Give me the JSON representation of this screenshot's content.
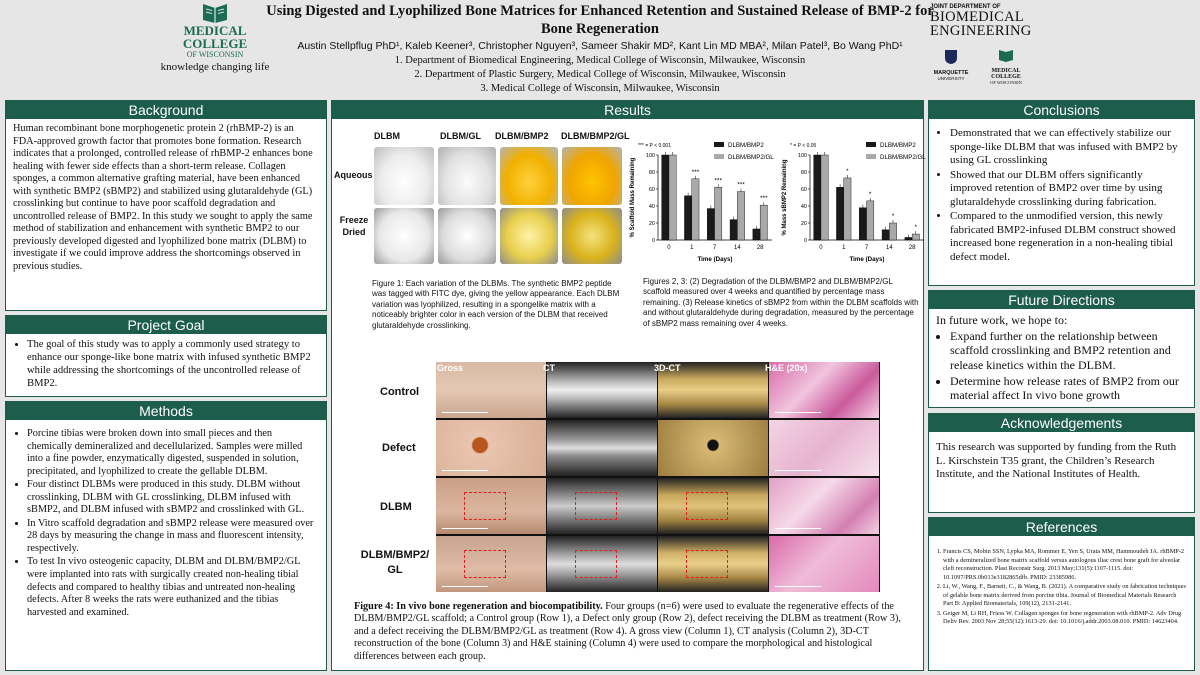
{
  "header": {
    "title": "Using Digested and Lyophilized Bone Matrices for Enhanced Retention and Sustained Release of BMP-2 for Bone Regeneration",
    "authors": "Austin Stellpflug PhD¹, Kaleb Keener³, Christopher Nguyen³, Sameer Shakir MD², Kant Lin MD MBA², Milan Patel³, Bo Wang PhD¹",
    "affiliations": [
      "1. Department of Biomedical Engineering, Medical College of Wisconsin, Milwaukee, Wisconsin",
      "2. Department of Plastic Surgery, Medical College of Wisconsin, Milwaukee, Wisconsin",
      "3. Medical College of Wisconsin, Milwaukee, Wisconsin"
    ],
    "left_logo": {
      "line1": "MEDICAL",
      "line2": "COLLEGE",
      "line3": "OF WISCONSIN",
      "tagline": "knowledge changing life"
    },
    "right_logo": {
      "small": "JOINT DEPARTMENT OF",
      "big1": "BIOMEDICAL",
      "big2": "ENGINEERING",
      "m1": "MARQUETTE",
      "m2": "UNIVERSITY",
      "mc1": "MEDICAL",
      "mc2": "COLLEGE",
      "mc3": "OF WISCONSIN"
    }
  },
  "background": {
    "heading": "Background",
    "text": "Human recombinant bone morphogenetic protein 2 (rhBMP-2) is an FDA-approved growth factor that promotes bone formation. Research indicates that a prolonged, controlled release of rhBMP-2 enhances bone healing with fewer side effects than a short-term release. Collagen sponges, a common alternative grafting material, have been enhanced with synthetic BMP2 (sBMP2) and stabilized using glutaraldehyde (GL) crosslinking but continue to have poor scaffold degradation and uncontrolled release of BMP2. In this study we sought to apply the same method of stabilization and enhancement with synthetic BMP2 to our previously developed digested and lyophilized bone matrix (DLBM) to investigate if we could improve address the shortcomings observed in previous studies."
  },
  "goal": {
    "heading": "Project Goal",
    "items": [
      "The goal of this study was to apply a commonly used strategy to enhance our sponge-like bone matrix with infused synthetic BMP2 while addressing the shortcomings of the uncontrolled release of BMP2."
    ]
  },
  "methods": {
    "heading": "Methods",
    "items": [
      "Porcine tibias were broken down into small pieces and then chemically demineralized and decellularized. Samples were milled into a fine powder, enzymatically digested, suspended in solution, precipitated, and lyophilized to create the gellable DLBM.",
      "Four distinct DLBMs were produced in this study. DLBM without crosslinking, DLBM with GL crosslinking, DLBM infused with sBMP2, and DLBM infused with sBMP2 and crosslinked with GL.",
      "In Vitro scaffold degradation and sBMP2 release were measured over 28 days by measuring the change in mass and fluorescent intensity, respectively.",
      "To test In vivo osteogenic capacity, DLBM and DLBM/BMP2/GL were implanted into rats with surgically created non-healing tibial defects and compared to healthy tibias and untreated non-healing defects. After 8 weeks the rats were euthanized and the tibias harvested and examined."
    ]
  },
  "results": {
    "heading": "Results",
    "fig1": {
      "cols": [
        "DLBM",
        "DLBM/GL",
        "DLBM/BMP2",
        "DLBM/BMP2/GL"
      ],
      "rows": [
        "Aqueous",
        "Freeze Dried"
      ],
      "caption": "Figure 1: Each variation of the DLBMs. The synthetic BMP2 peptide was tagged with FITC dye, giving the yellow appearance. Each DLBM variation was lyophilized, resulting in a spongelike matrix with a noticeably brighter color in each version of the DLBM that received glutaraldehyde crosslinking."
    },
    "fig23_caption": "Figures 2, 3: (2) Degradation of the DLBM/BMP2 and DLBM/BMP2/GL scaffold measured over 4 weeks and quantified by percentage mass remaining. (3) Release kinetics of sBMP2 from within the DLBM scaffolds with and without glutaraldehyde during degradation, measured by the percentage of sBMP2 mass remaining over 4 weeks.",
    "fig4": {
      "cols": [
        "Gross",
        "CT",
        "3D-CT",
        "H&E (20x)"
      ],
      "rows": [
        "Control",
        "Defect",
        "DLBM",
        "DLBM/BMP2/ GL"
      ],
      "caption_bold": "Figure 4: In vivo bone regeneration and biocompatibility.",
      "caption": " Four groups (n=6) were used to evaluate the regenerative effects of the DLBM/BMP2/GL scaffold; a Control group (Row 1), a Defect only group (Row 2), defect receiving the DLBM as treatment (Row 3), and a defect receiving the DLBM/BMP2/GL as treatment (Row 4). A gross view (Column 1), CT analysis (Column 2), 3D-CT reconstruction of the bone (Column 3) and H&E staining (Column 4) were used to compare the morphological and histological differences between each group."
    }
  },
  "chart_data": [
    {
      "type": "bar",
      "ylabel": "% Scaffold Mass Remaining",
      "xlabel": "Time (Days)",
      "categories": [
        "0",
        "1",
        "7",
        "14",
        "28"
      ],
      "ylim": [
        0,
        100
      ],
      "yticks": [
        0,
        20,
        40,
        60,
        80,
        100
      ],
      "significance_note": "*** = P < 0.001",
      "significance": [
        "",
        "***",
        "***",
        "***",
        "***"
      ],
      "series": [
        {
          "name": "DLBM/BMP2",
          "color": "#1a1a1a",
          "values": [
            100,
            52,
            37,
            24,
            13
          ]
        },
        {
          "name": "DLBM/BMP2/GL",
          "color": "#a9a9a9",
          "values": [
            100,
            72,
            62,
            57,
            41
          ]
        }
      ]
    },
    {
      "type": "bar",
      "ylabel": "% Mass sBMP2 Remaining",
      "xlabel": "Time (Days)",
      "categories": [
        "0",
        "1",
        "7",
        "14",
        "28"
      ],
      "ylim": [
        0,
        100
      ],
      "yticks": [
        0,
        20,
        40,
        60,
        80,
        100
      ],
      "significance_note": "* = P < 0.05",
      "significance": [
        "",
        "*",
        "*",
        "*",
        "*"
      ],
      "series": [
        {
          "name": "DLBM/BMP2",
          "color": "#1a1a1a",
          "values": [
            100,
            62,
            38,
            12,
            3
          ]
        },
        {
          "name": "DLBM/BMP2/GL",
          "color": "#a9a9a9",
          "values": [
            100,
            73,
            46,
            20,
            7
          ]
        }
      ]
    }
  ],
  "conclusions": {
    "heading": "Conclusions",
    "items": [
      "Demonstrated that we can effectively stabilize our sponge-like DLBM that was infused with BMP2 by using GL crosslinking",
      "Showed that our DLBM offers significantly improved retention of BMP2 over time by using glutaraldehyde crosslinking during fabrication.",
      "Compared to the unmodified version, this newly fabricated BMP2-infused DLBM construct showed increased bone regeneration in a non-healing tibial defect model."
    ]
  },
  "future": {
    "heading": "Future Directions",
    "intro": "In future work, we hope to:",
    "items": [
      "Expand further on the relationship between scaffold crosslinking and BMP2 retention and release kinetics within the DLBM.",
      "Determine how release rates of BMP2 from our material affect In vivo bone growth"
    ]
  },
  "acknowledgements": {
    "heading": "Acknowledgements",
    "text": "This research was supported by funding from the Ruth L. Kirschstein T35 grant, the Children’s Research Institute, and the National Institutes of Health."
  },
  "references": {
    "heading": "References",
    "items": [
      "Francis CS, Mobin SSN, Lypka MA, Rommer E, Yen S, Urata MM, Hammoudeh JA. rhBMP-2 with a demineralized bone matrix scaffold versus autologous iliac crest bone graft for alveolar cleft reconstruction. Plast Reconstr Surg. 2013 May;131(5):1107-1115. doi: 10.1097/PRS.0b013e3182865dfb. PMID: 23385986.",
      "Li, W., Wang, F., Barnett, C., & Wang, B. (2021). A comparative study on fabrication techniques of gelable bone matrix derived from porcine tibia. Journal of Biomedical Materials Research Part B: Applied Biomaterials, 109(12), 2131-2141.",
      "Geiger M, Li RH, Friess W. Collagen sponges for bone regeneration with rhBMP-2. Adv Drug Deliv Rev. 2003 Nov 28;55(12):1613-29. doi: 10.1016/j.addr.2003.08.010. PMID: 14623404."
    ]
  }
}
